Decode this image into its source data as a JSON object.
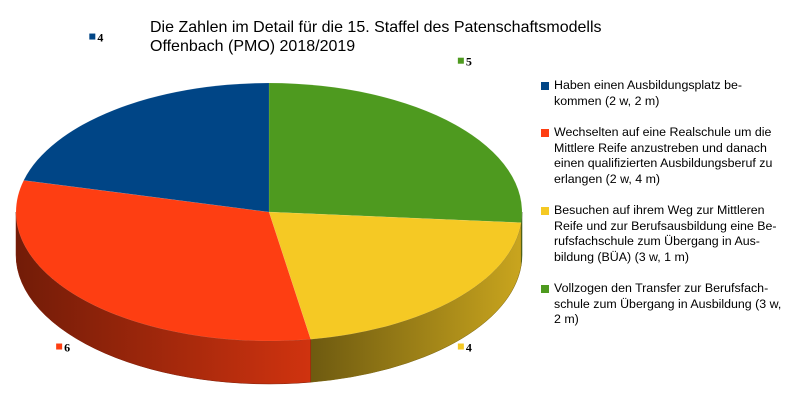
{
  "chart_data": {
    "type": "pie",
    "title_lines": [
      "Die Zahlen im Detail für die 15. Staffel des Patenschaftsmodells",
      "Offenbach (PMO) 2018/2019"
    ],
    "slices": [
      {
        "label": "Vollzogen den Transfer zur Berufsfach-\nschule zum Übergang in Ausbildung (3 w,\n2 m)",
        "value": 5,
        "color": "#4e9a1f",
        "data_label": "5"
      },
      {
        "label": "Besuchen auf ihrem Weg zur Mittleren\nReife und zur Berufsausbildung eine Be-\nrufsfachschule zum Übergang in Aus-\nbildung (BÜA) (3 w, 1 m)",
        "value": 4,
        "color": "#f5c924",
        "data_label": "4"
      },
      {
        "label": "Wechselten auf eine Realschule um die\nMittlere Reife anzustreben und danach\neinen qualifizierten Ausbildungsberuf zu\nerlangen (2 w, 4 m)",
        "value": 6,
        "color": "#fe3e12",
        "data_label": "6"
      },
      {
        "label": "Haben einen Ausbildungsplatz be-\nkommen (2 w, 2 m)",
        "value": 4,
        "color": "#004586",
        "data_label": "4"
      }
    ],
    "legend_order": [
      3,
      2,
      1,
      0
    ],
    "legend_position": "right",
    "style": "3d-pie"
  }
}
